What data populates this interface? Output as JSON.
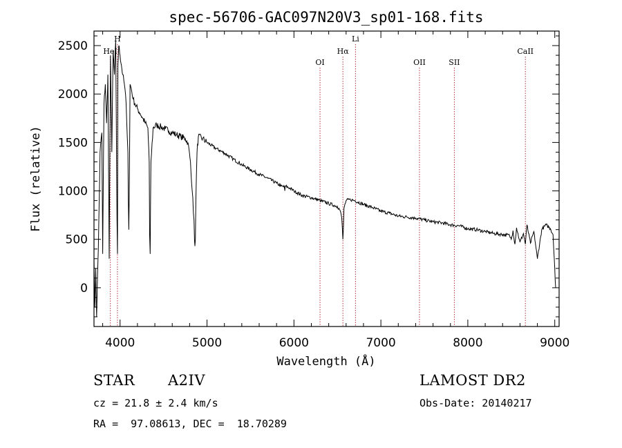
{
  "chart_data": {
    "type": "line",
    "title": "spec-56706-GAC097N20V3_sp01-168.fits",
    "xlabel": "Wavelength (Å)",
    "ylabel": "Flux (relative)",
    "xlim": [
      3700,
      9050
    ],
    "ylim": [
      -400,
      2650
    ],
    "xticks": [
      4000,
      5000,
      6000,
      7000,
      8000,
      9000
    ],
    "yticks": [
      0,
      500,
      1000,
      1500,
      2000,
      2500
    ],
    "grid": false,
    "series": [
      {
        "x": [
          3700,
          3710,
          3720,
          3730,
          3740,
          3750,
          3770,
          3790,
          3800,
          3815,
          3830,
          3845,
          3860,
          3875,
          3890,
          3905,
          3920,
          3935,
          3950,
          3960,
          3965,
          3970,
          3975,
          3985,
          4000,
          4015,
          4030,
          4050,
          4070,
          4090,
          4095,
          4101,
          4107,
          4115,
          4130,
          4150,
          4170,
          4200,
          4230,
          4260,
          4290,
          4320,
          4335,
          4340,
          4346,
          4355,
          4380,
          4420,
          4470,
          4520,
          4560,
          4600,
          4650,
          4700,
          4750,
          4780,
          4810,
          4830,
          4850,
          4856,
          4861,
          4866,
          4872,
          4885,
          4900,
          4950,
          5000,
          5100,
          5200,
          5300,
          5400,
          5500,
          5600,
          5700,
          5800,
          5850,
          5890,
          5895,
          5900,
          5950,
          6000,
          6100,
          6200,
          6300,
          6400,
          6500,
          6530,
          6550,
          6558,
          6563,
          6568,
          6575,
          6600,
          6650,
          6700,
          6800,
          6900,
          7000,
          7100,
          7200,
          7300,
          7400,
          7500,
          7600,
          7700,
          7800,
          7900,
          8000,
          8100,
          8200,
          8300,
          8400,
          8480,
          8500,
          8520,
          8542,
          8560,
          8600,
          8640,
          8662,
          8680,
          8720,
          8760,
          8800,
          8850,
          8900,
          8950,
          8980,
          9000,
          9010
        ],
        "y": [
          300,
          -200,
          200,
          -300,
          100,
          400,
          1400,
          1600,
          350,
          1900,
          2100,
          1700,
          2200,
          300,
          2400,
          1400,
          2450,
          2200,
          2550,
          1300,
          700,
          350,
          2300,
          2500,
          2400,
          2300,
          2200,
          2100,
          1900,
          1400,
          900,
          600,
          1100,
          2100,
          2050,
          1950,
          1900,
          1850,
          1800,
          1750,
          1700,
          1650,
          1300,
          550,
          350,
          1300,
          1650,
          1680,
          1660,
          1640,
          1620,
          1600,
          1580,
          1560,
          1540,
          1500,
          1300,
          1000,
          700,
          500,
          430,
          500,
          900,
          1400,
          1560,
          1540,
          1500,
          1440,
          1390,
          1330,
          1270,
          1220,
          1170,
          1130,
          1080,
          1050,
          1040,
          1000,
          1050,
          1030,
          1000,
          950,
          930,
          900,
          870,
          840,
          800,
          720,
          600,
          500,
          600,
          820,
          900,
          910,
          900,
          860,
          830,
          790,
          770,
          740,
          730,
          720,
          700,
          680,
          670,
          650,
          640,
          610,
          600,
          580,
          560,
          550,
          540,
          500,
          590,
          450,
          620,
          470,
          560,
          450,
          650,
          460,
          580,
          300,
          600,
          650,
          610,
          550,
          200,
          0
        ]
      }
    ]
  },
  "spectral_lines": [
    {
      "label": "HeI",
      "wavelength": 3888,
      "label_row": 3
    },
    {
      "label": "H",
      "wavelength": 3970,
      "label_row": 1
    },
    {
      "label": "OI",
      "wavelength": 6300,
      "label_row": 4
    },
    {
      "label": "Hα",
      "wavelength": 6563,
      "label_row": 3
    },
    {
      "label": "Li",
      "wavelength": 6708,
      "label_row": 2
    },
    {
      "label": "OII",
      "wavelength": 7444,
      "label_row": 4
    },
    {
      "label": "SII",
      "wavelength": 7845,
      "label_row": 4
    },
    {
      "label": "CaII",
      "wavelength": 8662,
      "label_row": 3
    }
  ],
  "info": {
    "object_type": "STAR",
    "subclass": "A2IV",
    "survey": "LAMOST DR2",
    "cz": "cz = 21.8 ± 2.4 km/s",
    "obs_date": "Obs-Date: 20140217",
    "coords": "RA =  97.08613, DEC =  18.70289"
  },
  "colors": {
    "spectrum": "#000000",
    "line_marker": "#b0303a",
    "axes": "#000000"
  }
}
